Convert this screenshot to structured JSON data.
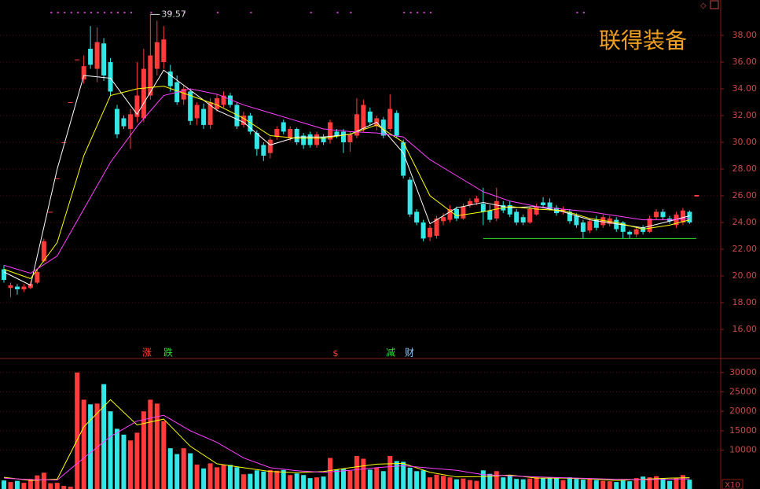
{
  "chart_data": {
    "type": "candlestick",
    "title": "联得装备",
    "up_color": "#ff3b3b",
    "down_color": "#35e6e6",
    "ylim": [
      13.88,
      40.65
    ],
    "yticks": [
      {
        "value": 16,
        "label": "16.00"
      },
      {
        "value": 18,
        "label": "18.00"
      },
      {
        "value": 20,
        "label": "20.00"
      },
      {
        "value": 22,
        "label": "22.00"
      },
      {
        "value": 24,
        "label": "24.00"
      },
      {
        "value": 26,
        "label": "26.00"
      },
      {
        "value": 28,
        "label": "28.00"
      },
      {
        "value": 30,
        "label": "30.00"
      },
      {
        "value": 32,
        "label": "32.00"
      },
      {
        "value": 34,
        "label": "34.00"
      },
      {
        "value": 36,
        "label": "36.00"
      },
      {
        "value": 38,
        "label": "38.00"
      }
    ],
    "grid": true,
    "candles": [
      [
        20.5,
        20.8,
        19.5,
        19.7
      ],
      [
        19.1,
        19.5,
        18.4,
        19.3
      ],
      [
        19.2,
        19.4,
        18.6,
        19.0
      ],
      [
        19.0,
        19.4,
        18.8,
        19.2
      ],
      [
        19.1,
        19.6,
        19.0,
        19.4
      ],
      [
        19.5,
        20.5,
        19.4,
        20.3
      ],
      [
        21.1,
        22.8,
        21.0,
        22.6
      ],
      [
        24.8,
        24.8,
        24.8,
        24.8
      ],
      [
        27.3,
        27.3,
        27.3,
        27.3
      ],
      [
        30.0,
        30.0,
        30.0,
        30.0
      ],
      [
        33.0,
        33.0,
        33.0,
        33.0
      ],
      [
        36.2,
        36.2,
        36.2,
        36.2
      ],
      [
        34.7,
        36.5,
        34.4,
        35.7
      ],
      [
        37.0,
        38.7,
        35.5,
        35.8
      ],
      [
        35.5,
        38.6,
        34.5,
        37.5
      ],
      [
        37.4,
        37.8,
        34.6,
        35.0
      ],
      [
        36.0,
        36.3,
        33.5,
        33.8
      ],
      [
        32.5,
        32.8,
        30.3,
        30.6
      ],
      [
        31.8,
        32.0,
        31.0,
        31.2
      ],
      [
        31.0,
        32.5,
        29.5,
        32.1
      ],
      [
        31.9,
        36.0,
        31.5,
        33.5
      ],
      [
        31.8,
        37.0,
        31.5,
        35.5
      ],
      [
        33.5,
        39.57,
        33.2,
        36.5
      ],
      [
        35.5,
        39.1,
        35.0,
        37.5
      ],
      [
        36.0,
        38.7,
        35.5,
        37.7
      ],
      [
        35.3,
        35.8,
        33.8,
        34.2
      ],
      [
        34.5,
        35.0,
        32.8,
        33.0
      ],
      [
        33.2,
        34.3,
        32.8,
        34.0
      ],
      [
        33.8,
        34.0,
        31.3,
        31.6
      ],
      [
        31.8,
        33.0,
        31.3,
        32.8
      ],
      [
        32.5,
        32.9,
        31.0,
        31.3
      ],
      [
        31.3,
        33.3,
        31.0,
        33.0
      ],
      [
        32.5,
        33.6,
        32.3,
        33.3
      ],
      [
        32.8,
        33.8,
        32.6,
        33.5
      ],
      [
        33.5,
        33.7,
        32.6,
        32.8
      ],
      [
        32.8,
        33.0,
        31.0,
        31.2
      ],
      [
        31.3,
        32.3,
        31.1,
        32.0
      ],
      [
        32.0,
        32.2,
        30.6,
        30.8
      ],
      [
        30.7,
        30.9,
        29.0,
        29.5
      ],
      [
        29.8,
        30.0,
        28.6,
        29.0
      ],
      [
        29.2,
        30.4,
        28.8,
        30.2
      ],
      [
        30.4,
        31.2,
        30.2,
        31.0
      ],
      [
        31.5,
        31.7,
        30.6,
        30.8
      ],
      [
        30.3,
        31.2,
        30.1,
        31.0
      ],
      [
        31.0,
        31.1,
        29.8,
        30.0
      ],
      [
        30.5,
        30.7,
        29.5,
        29.8
      ],
      [
        30.6,
        30.8,
        29.6,
        29.8
      ],
      [
        29.8,
        30.8,
        29.6,
        30.6
      ],
      [
        30.4,
        30.6,
        29.8,
        30.0
      ],
      [
        30.2,
        31.7,
        29.9,
        31.5
      ],
      [
        30.8,
        31.0,
        30.3,
        30.5
      ],
      [
        30.8,
        31.0,
        29.2,
        30.0
      ],
      [
        30.0,
        30.8,
        29.3,
        30.6
      ],
      [
        30.5,
        33.3,
        30.3,
        32.1
      ],
      [
        31.0,
        33.2,
        30.8,
        32.8
      ],
      [
        32.3,
        32.6,
        31.3,
        31.5
      ],
      [
        31.2,
        32.0,
        30.9,
        31.8
      ],
      [
        31.7,
        31.9,
        30.3,
        30.5
      ],
      [
        31.0,
        33.6,
        30.8,
        32.5
      ],
      [
        32.2,
        32.4,
        30.3,
        30.5
      ],
      [
        30.0,
        30.2,
        27.3,
        27.5
      ],
      [
        27.2,
        27.4,
        24.4,
        24.6
      ],
      [
        24.8,
        25.0,
        23.8,
        24.0
      ],
      [
        24.0,
        24.2,
        22.6,
        22.8
      ],
      [
        22.9,
        23.8,
        22.6,
        23.6
      ],
      [
        23.0,
        24.5,
        22.8,
        24.3
      ],
      [
        24.1,
        24.7,
        23.8,
        24.4
      ],
      [
        24.2,
        25.3,
        24.0,
        25.0
      ],
      [
        25.0,
        25.2,
        24.1,
        24.3
      ],
      [
        24.3,
        25.4,
        24.2,
        25.2
      ],
      [
        25.3,
        25.8,
        25.1,
        25.6
      ],
      [
        25.5,
        26.0,
        25.3,
        25.8
      ],
      [
        25.4,
        26.6,
        23.8,
        24.8
      ],
      [
        24.9,
        25.3,
        24.0,
        24.2
      ],
      [
        24.3,
        26.6,
        24.1,
        25.6
      ],
      [
        25.3,
        25.6,
        24.7,
        24.9
      ],
      [
        25.3,
        25.6,
        24.4,
        24.6
      ],
      [
        24.8,
        25.0,
        23.8,
        24.0
      ],
      [
        24.4,
        24.6,
        23.8,
        24.0
      ],
      [
        24.0,
        25.2,
        23.9,
        25.0
      ],
      [
        24.6,
        25.4,
        24.5,
        25.2
      ],
      [
        25.5,
        25.9,
        25.1,
        25.3
      ],
      [
        25.5,
        25.8,
        24.9,
        25.0
      ],
      [
        25.1,
        25.3,
        24.5,
        24.7
      ],
      [
        24.8,
        25.2,
        24.6,
        25.0
      ],
      [
        24.8,
        25.0,
        23.9,
        24.1
      ],
      [
        24.5,
        24.7,
        23.6,
        23.8
      ],
      [
        24.0,
        24.2,
        22.8,
        23.3
      ],
      [
        23.4,
        24.3,
        23.2,
        24.1
      ],
      [
        24.2,
        24.5,
        23.4,
        23.6
      ],
      [
        23.8,
        24.6,
        23.6,
        24.4
      ],
      [
        23.9,
        24.5,
        23.7,
        24.3
      ],
      [
        24.2,
        24.4,
        23.3,
        23.5
      ],
      [
        24.0,
        24.1,
        22.8,
        23.3
      ],
      [
        23.3,
        23.4,
        22.8,
        23.1
      ],
      [
        23.1,
        23.7,
        22.9,
        23.5
      ],
      [
        23.6,
        23.8,
        23.1,
        23.3
      ],
      [
        23.3,
        24.5,
        23.2,
        24.3
      ],
      [
        24.4,
        25.0,
        24.2,
        24.8
      ],
      [
        24.8,
        25.0,
        24.2,
        24.4
      ],
      [
        24.3,
        24.5,
        23.9,
        24.1
      ],
      [
        23.8,
        24.8,
        23.6,
        24.6
      ],
      [
        24.0,
        25.1,
        23.8,
        24.9
      ],
      [
        24.8,
        24.9,
        23.9,
        24.0
      ]
    ],
    "lines": [
      {
        "color": "#ffffff",
        "x": [
          0,
          4,
          8,
          12,
          16,
          20,
          24,
          28,
          32,
          36,
          40,
          44,
          48,
          52,
          56,
          60,
          64,
          68,
          72,
          76,
          80,
          84,
          88,
          92,
          96,
          100,
          103
        ],
        "values": [
          20.3,
          19.3,
          28.0,
          35.0,
          34.8,
          32.1,
          35.4,
          33.9,
          32.4,
          31.5,
          29.8,
          30.4,
          30.4,
          30.6,
          31.5,
          29.2,
          23.9,
          25.1,
          25.5,
          25.1,
          25.2,
          24.8,
          24.2,
          23.9,
          23.6,
          24.1,
          24.5
        ]
      },
      {
        "color": "#ffff00",
        "x": [
          0,
          4,
          8,
          12,
          16,
          20,
          24,
          28,
          32,
          36,
          40,
          44,
          48,
          52,
          56,
          60,
          64,
          68,
          72,
          76,
          80,
          84,
          88,
          92,
          96,
          100,
          103
        ],
        "values": [
          20.5,
          19.8,
          22.5,
          29.0,
          33.5,
          34.0,
          34.2,
          33.5,
          32.8,
          31.8,
          30.5,
          30.3,
          30.3,
          30.6,
          31.3,
          30.0,
          26.0,
          24.5,
          24.8,
          25.2,
          25.0,
          24.9,
          24.3,
          24.0,
          23.5,
          23.8,
          24.2
        ]
      },
      {
        "color": "#ff40ff",
        "x": [
          0,
          4,
          8,
          12,
          16,
          20,
          24,
          28,
          32,
          36,
          40,
          44,
          48,
          52,
          56,
          60,
          64,
          68,
          72,
          76,
          80,
          84,
          88,
          92,
          96,
          100,
          103
        ],
        "values": [
          20.8,
          20.2,
          21.5,
          25.0,
          28.5,
          31.2,
          33.5,
          34.0,
          33.6,
          32.8,
          32.2,
          31.6,
          31.0,
          30.8,
          30.7,
          30.4,
          28.7,
          27.5,
          26.3,
          25.6,
          25.2,
          25.0,
          24.8,
          24.5,
          24.2,
          24.2,
          24.3
        ]
      },
      {
        "color": "#33dd33",
        "x": [
          72,
          104
        ],
        "values": [
          22.8,
          22.8
        ]
      }
    ],
    "markers": [
      "涨",
      "跌",
      "$",
      "减",
      "财"
    ],
    "volume": {
      "unit_label": "X10",
      "ylim": [
        0,
        33200
      ],
      "yticks": [
        10000,
        15000,
        20000,
        25000,
        30000
      ],
      "values": [
        2200,
        1800,
        2100,
        1600,
        2600,
        3500,
        4200,
        1500,
        1600,
        800,
        600,
        30000,
        23000,
        21800,
        22000,
        27000,
        20000,
        15500,
        14000,
        12500,
        14500,
        20000,
        23000,
        22000,
        17500,
        10500,
        9000,
        10500,
        9200,
        6300,
        5300,
        6600,
        5600,
        6200,
        6200,
        5600,
        3800,
        3900,
        4800,
        4500,
        4900,
        4700,
        4900,
        3600,
        4000,
        3600,
        2800,
        3000,
        3200,
        8000,
        5000,
        5200,
        4700,
        8500,
        7800,
        5000,
        5500,
        4600,
        8500,
        7200,
        7000,
        5500,
        4600,
        4800,
        3000,
        3700,
        3400,
        3000,
        2500,
        2700,
        2300,
        2100,
        4800,
        3900,
        4600,
        3000,
        3500,
        2600,
        2500,
        2700,
        3100,
        2800,
        2900,
        2900,
        2300,
        3000,
        2600,
        2400,
        2700,
        2300,
        2100,
        2000,
        1800,
        2200,
        2000,
        2800,
        3200,
        3000,
        3300,
        2700,
        2100,
        2800,
        3600,
        2400
      ],
      "lines": [
        {
          "color": "#ffff00",
          "x": [
            0,
            4,
            8,
            12,
            16,
            20,
            24,
            28,
            32,
            36,
            40,
            44,
            48,
            52,
            56,
            60,
            64,
            68,
            72,
            76,
            80,
            84,
            88,
            92,
            96,
            100,
            103
          ],
          "values": [
            3000,
            2200,
            2500,
            16000,
            23000,
            16500,
            18000,
            11000,
            6500,
            5500,
            4500,
            4200,
            4500,
            5500,
            6400,
            6600,
            4300,
            3100,
            3200,
            3600,
            2800,
            2800,
            2600,
            2200,
            2500,
            2800,
            2900
          ]
        },
        {
          "color": "#ff40ff",
          "x": [
            0,
            4,
            8,
            12,
            16,
            20,
            24,
            28,
            32,
            36,
            40,
            44,
            48,
            52,
            56,
            60,
            64,
            68,
            72,
            76,
            80,
            84,
            88,
            92,
            96,
            100,
            103
          ],
          "values": [
            2800,
            2400,
            2300,
            8000,
            13500,
            17500,
            19000,
            15000,
            12000,
            8000,
            5500,
            4700,
            4300,
            4800,
            5500,
            6000,
            5400,
            4800,
            3700,
            3400,
            3100,
            2900,
            2700,
            2500,
            2400,
            2500,
            2600
          ]
        }
      ]
    }
  }
}
